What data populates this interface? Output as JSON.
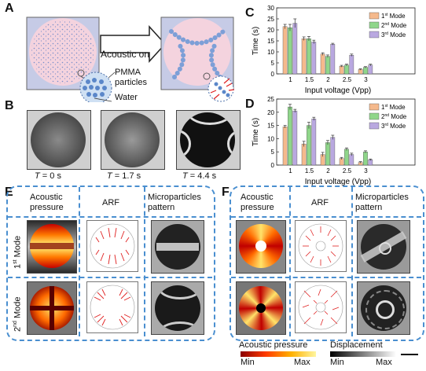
{
  "panels": {
    "A": "A",
    "B": "B",
    "C": "C",
    "D": "D",
    "E": "E",
    "F": "F"
  },
  "panelA": {
    "arrow_label": "Acoustic on",
    "particles_label_line1": "PMMA",
    "particles_label_line2": "particles",
    "water_label": "Water"
  },
  "panelB": {
    "times": [
      {
        "var": "T",
        "rest": " = 0 s"
      },
      {
        "var": "T",
        "rest": " = 1.7 s"
      },
      {
        "var": "T",
        "rest": " = 4.4 s"
      }
    ]
  },
  "legend": [
    {
      "sup": "st",
      "pre": "1",
      "post": " Mode",
      "color": "#f5b98c"
    },
    {
      "sup": "nd",
      "pre": "2",
      "post": " Mode",
      "color": "#8fd68a"
    },
    {
      "sup": "rd",
      "pre": "3",
      "post": " Mode",
      "color": "#b9a8e0"
    }
  ],
  "grid_headers": {
    "col1_line1": "Acoustic",
    "col1_line2": "pressure",
    "col2": "ARF",
    "col3_line1": "Microparticles",
    "col3_line2": "pattern",
    "row1_pre": "1",
    "row1_sup": "st",
    "row1_post": " Mode",
    "row2_pre": "2",
    "row2_sup": "nd",
    "row2_post": " Mode"
  },
  "colorbars": {
    "pressure_label": "Acoustic pressure",
    "displacement_label": "Displacement",
    "min": "Min",
    "max": "Max"
  },
  "chart_data": [
    {
      "panel": "C",
      "type": "bar",
      "ylabel": "Time (s)",
      "xlabel": "Input voltage (Vpp)",
      "categories": [
        "1",
        "1.5",
        "2",
        "2.5",
        "3"
      ],
      "ylim": [
        0,
        30
      ],
      "yticks": [
        "0",
        "5",
        "10",
        "15",
        "20",
        "25",
        "30"
      ],
      "series": [
        {
          "name": "1st Mode",
          "values": [
            21.5,
            16,
            9,
            3.5,
            2
          ]
        },
        {
          "name": "2nd Mode",
          "values": [
            21,
            16,
            8,
            4,
            3
          ]
        },
        {
          "name": "3rd Mode",
          "values": [
            23,
            14.5,
            13.5,
            8.5,
            4
          ]
        }
      ],
      "errors": [
        [
          1,
          0.8,
          0.6,
          0.4,
          0.3
        ],
        [
          1.5,
          1,
          0.6,
          0.4,
          0.3
        ],
        [
          2,
          0.8,
          0.4,
          0.5,
          0.4
        ]
      ]
    },
    {
      "panel": "D",
      "type": "bar",
      "ylabel": "Time (s)",
      "xlabel": "Input voltage (Vpp)",
      "categories": [
        "1",
        "1.5",
        "2",
        "2.5",
        "3"
      ],
      "ylim": [
        0,
        25
      ],
      "yticks": [
        "0",
        "5",
        "10",
        "15",
        "20",
        "25"
      ],
      "series": [
        {
          "name": "1st Mode",
          "values": [
            14.5,
            8,
            4,
            2.5,
            1
          ]
        },
        {
          "name": "2nd Mode",
          "values": [
            22,
            15,
            8.5,
            6,
            5
          ]
        },
        {
          "name": "3rd Mode",
          "values": [
            20.5,
            17.5,
            10.5,
            4,
            2
          ]
        }
      ],
      "errors": [
        [
          0.5,
          1,
          0.8,
          0.4,
          0.3
        ],
        [
          1,
          1.2,
          0.8,
          0.5,
          0.4
        ],
        [
          0.6,
          0.6,
          0.8,
          0.5,
          0.3
        ]
      ]
    }
  ]
}
